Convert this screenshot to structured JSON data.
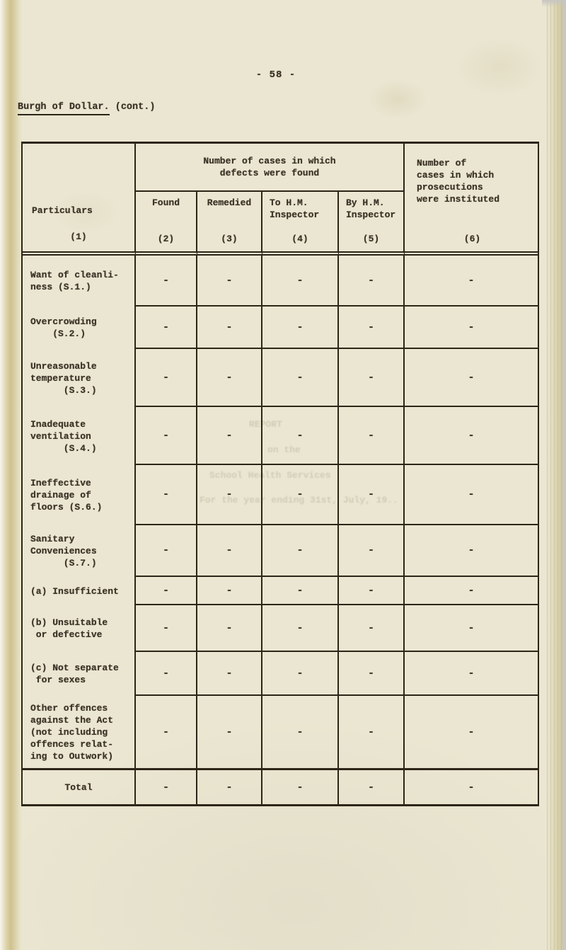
{
  "page": {
    "number_label": "- 58 -",
    "title": "Burgh of Dollar.",
    "title_suffix": " (cont.)"
  },
  "table": {
    "header": {
      "particulars_label": "Particulars",
      "particulars_number": "(1)",
      "group_label": "Number of cases in which\ndefects were found",
      "columns": [
        {
          "label": "Found",
          "number": "(2)"
        },
        {
          "label": "Remedied",
          "number": "(3)"
        },
        {
          "label": "To H.M.\nInspector",
          "number": "(4)"
        },
        {
          "label": "By H.M.\nInspector",
          "number": "(5)"
        }
      ],
      "prosecutions_label": "Number of\ncases in which\nprosecutions\nwere instituted",
      "prosecutions_number": "(6)"
    },
    "rows": [
      {
        "label": "Want of cleanli-\nness (S.1.)",
        "found": "-",
        "remedied": "-",
        "to_hm": "-",
        "by_hm": "-",
        "prosecutions": "-"
      },
      {
        "label": "Overcrowding\n    (S.2.)",
        "found": "-",
        "remedied": "-",
        "to_hm": "-",
        "by_hm": "-",
        "prosecutions": "-"
      },
      {
        "label": "Unreasonable\ntemperature\n      (S.3.)",
        "found": "-",
        "remedied": "-",
        "to_hm": "-",
        "by_hm": "-",
        "prosecutions": "-"
      },
      {
        "label": "Inadequate\nventilation\n      (S.4.)",
        "found": "-",
        "remedied": "-",
        "to_hm": "-",
        "by_hm": "-",
        "prosecutions": "-"
      },
      {
        "label": "Ineffective\ndrainage of\nfloors (S.6.)",
        "found": "-",
        "remedied": "-",
        "to_hm": "-",
        "by_hm": "-",
        "prosecutions": "-"
      },
      {
        "label": "Sanitary\nConveniences\n      (S.7.)",
        "found": "-",
        "remedied": "-",
        "to_hm": "-",
        "by_hm": "-",
        "prosecutions": "-"
      },
      {
        "label": "(a) Insufficient",
        "found": "-",
        "remedied": "-",
        "to_hm": "-",
        "by_hm": "-",
        "prosecutions": "-"
      },
      {
        "label": "(b) Unsuitable\n or defective",
        "found": "-",
        "remedied": "-",
        "to_hm": "-",
        "by_hm": "-",
        "prosecutions": "-"
      },
      {
        "label": "(c) Not separate\n for sexes",
        "found": "-",
        "remedied": "-",
        "to_hm": "-",
        "by_hm": "-",
        "prosecutions": "-"
      },
      {
        "label": "Other offences\nagainst the Act\n(not including\noffences relat-\ning to Outwork)",
        "found": "-",
        "remedied": "-",
        "to_hm": "-",
        "by_hm": "-",
        "prosecutions": "-"
      },
      {
        "label": "Total",
        "found": "-",
        "remedied": "-",
        "to_hm": "-",
        "by_hm": "-",
        "prosecutions": "-"
      }
    ]
  },
  "bleedthrough": {
    "lines": [
      {
        "text": "REPORT"
      },
      {
        "text": "on the"
      },
      {
        "text": "School Health Services"
      },
      {
        "text": "For the year ending 31st, July, 19.."
      }
    ]
  }
}
